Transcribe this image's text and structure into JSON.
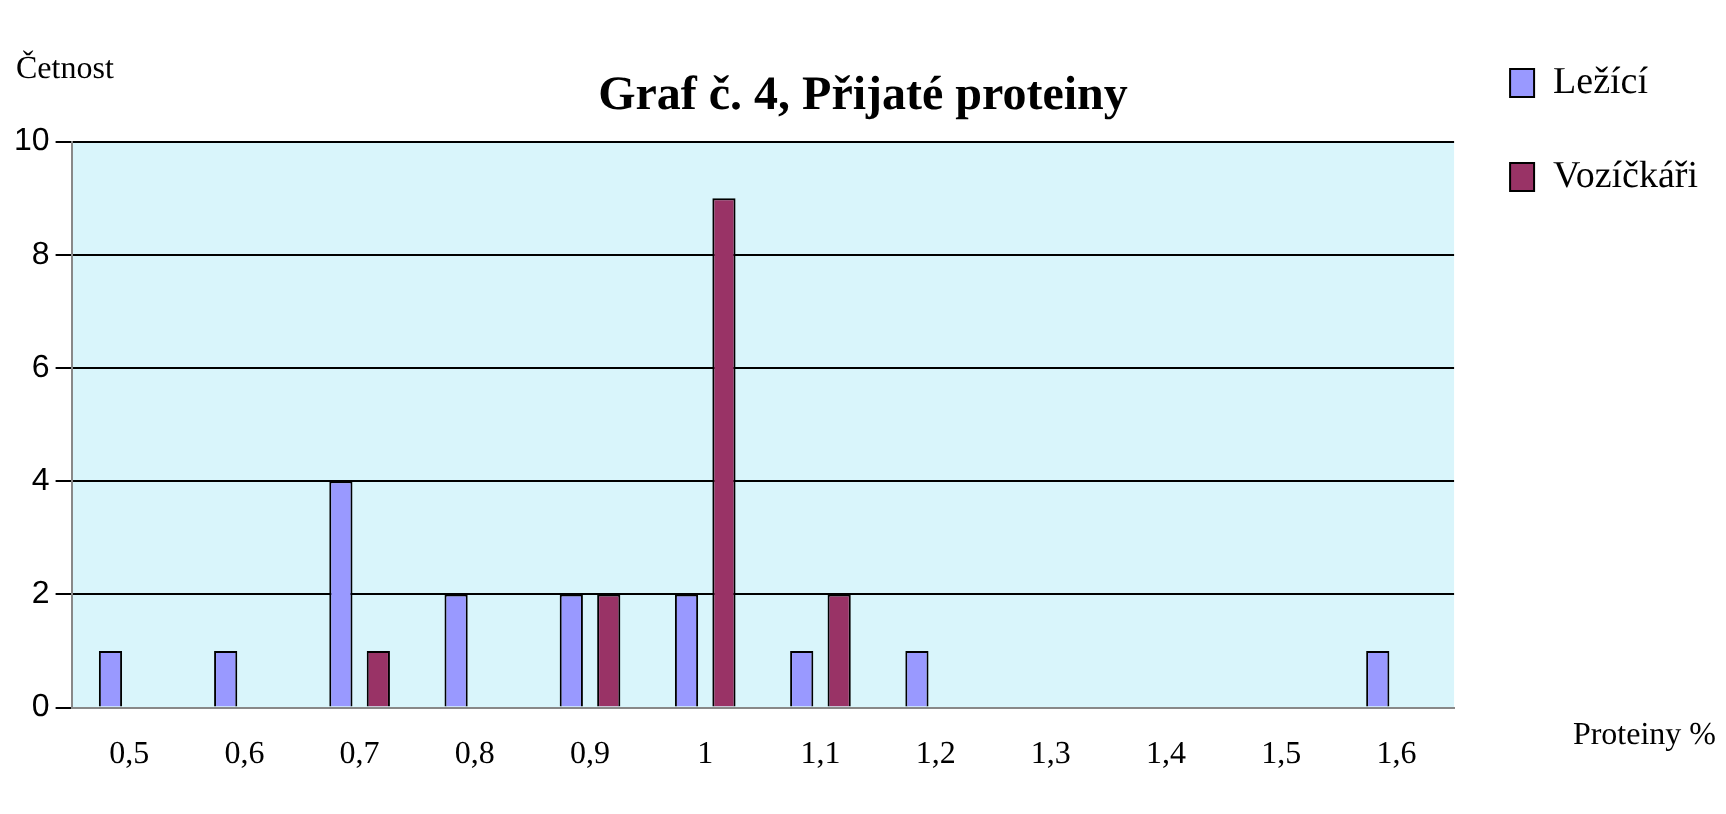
{
  "chart_data": {
    "type": "bar",
    "title": "Graf č. 4, Přijaté proteiny",
    "xlabel": "Proteiny %",
    "ylabel": "Četnost",
    "categories": [
      "0,5",
      "0,6",
      "0,7",
      "0,8",
      "0,9",
      "1",
      "1,1",
      "1,2",
      "1,3",
      "1,4",
      "1,5",
      "1,6"
    ],
    "series": [
      {
        "name": "Ležící",
        "color": "#9999ff",
        "values": [
          1,
          1,
          4,
          2,
          2,
          2,
          1,
          1,
          0,
          0,
          0,
          1
        ]
      },
      {
        "name": "Vozíčkáři",
        "color": "#993366",
        "values": [
          0,
          0,
          1,
          0,
          2,
          9,
          2,
          0,
          0,
          0,
          0,
          0
        ]
      }
    ],
    "ylim": [
      0,
      10
    ],
    "yticks": [
      0,
      2,
      4,
      6,
      8,
      10
    ],
    "grid": "y",
    "legend": "right"
  }
}
